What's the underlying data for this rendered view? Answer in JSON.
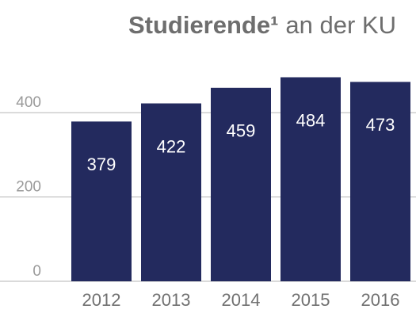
{
  "chart_data": {
    "type": "bar",
    "title": {
      "bold": "Studierende¹",
      "rest": "an der KU"
    },
    "categories": [
      "2012",
      "2013",
      "2014",
      "2015",
      "2016"
    ],
    "values": [
      379,
      422,
      459,
      484,
      473
    ],
    "color": "#232a5e",
    "ylim": [
      0,
      500
    ],
    "yticks": [
      0,
      200,
      400
    ],
    "grid": true
  }
}
